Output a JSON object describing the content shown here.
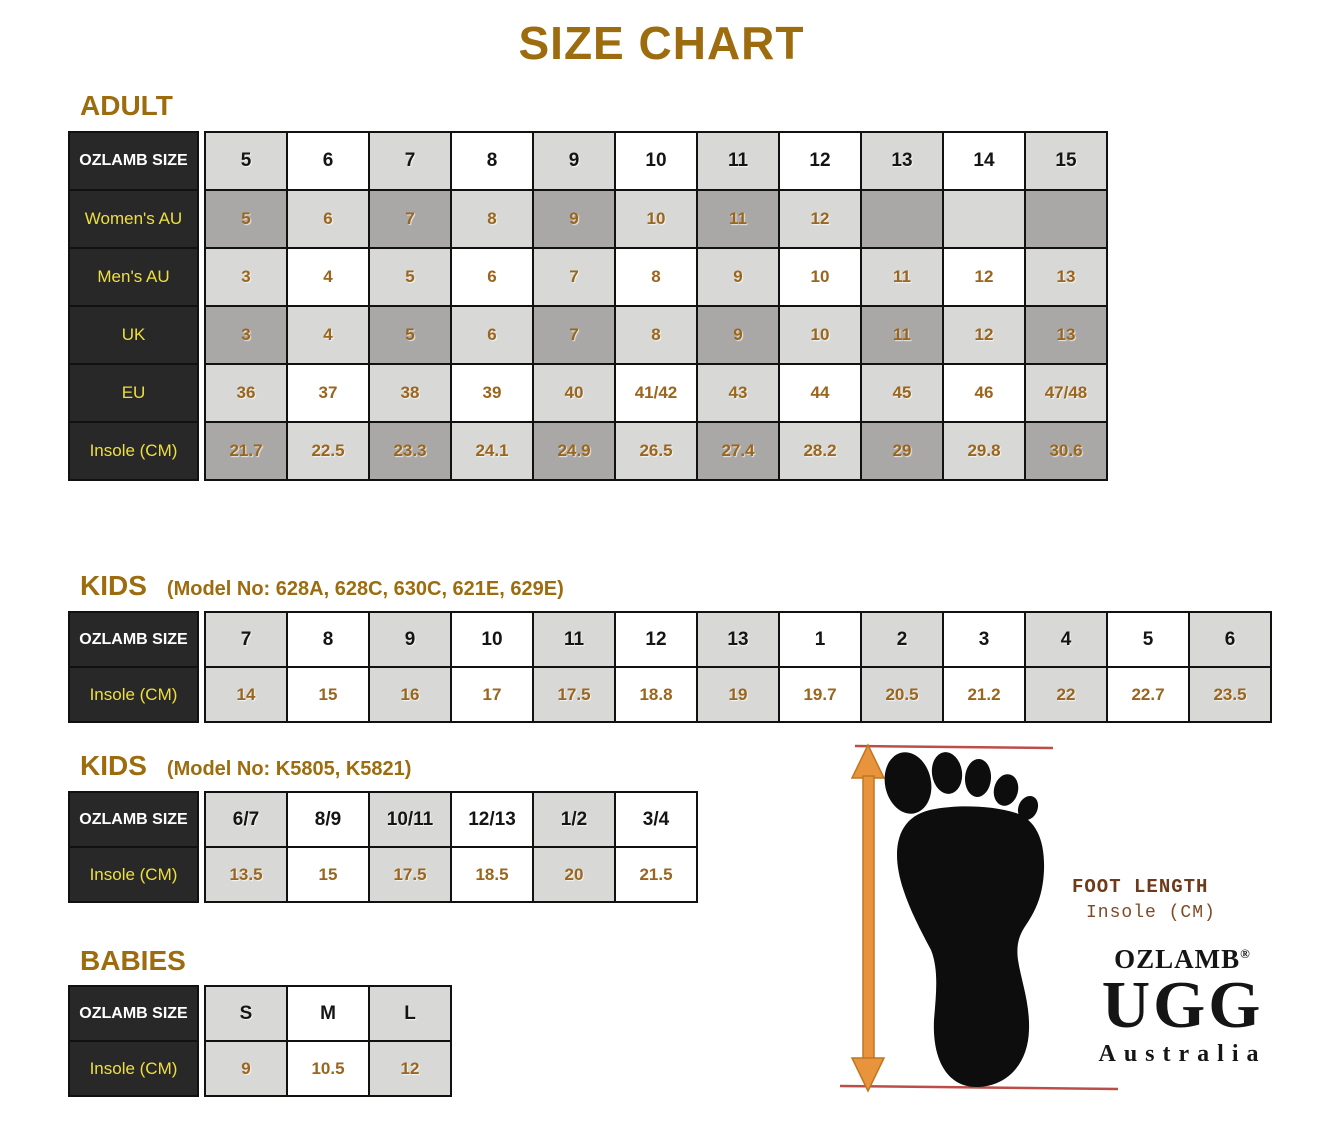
{
  "title": "SIZE CHART",
  "colors": {
    "accent_brown": "#9c6c0e",
    "value_brown": "#9a651d",
    "label_bg": "#282828",
    "label_yellow": "#efdf3e",
    "cell_white": "#ffffff",
    "cell_light_gray": "#d8d8d6",
    "cell_dark_gray": "#a9a8a6",
    "arrow_orange": "#e8943c",
    "ruler_red": "#bc4e49",
    "foot_black": "#0d0d0d"
  },
  "sections": {
    "adult": {
      "heading": "ADULT",
      "rows": [
        {
          "label": "OZLAMB SIZE",
          "label_ink": "white",
          "pattern": "A",
          "ink": "black",
          "values": [
            "5",
            "6",
            "7",
            "8",
            "9",
            "10",
            "11",
            "12",
            "13",
            "14",
            "15"
          ]
        },
        {
          "label": "Women's AU",
          "label_ink": "yellow",
          "pattern": "B",
          "ink": "brown",
          "values": [
            "5",
            "6",
            "7",
            "8",
            "9",
            "10",
            "11",
            "12",
            "",
            "",
            ""
          ]
        },
        {
          "label": "Men's AU",
          "label_ink": "yellow",
          "pattern": "A",
          "ink": "brown",
          "values": [
            "3",
            "4",
            "5",
            "6",
            "7",
            "8",
            "9",
            "10",
            "11",
            "12",
            "13"
          ]
        },
        {
          "label": "UK",
          "label_ink": "yellow",
          "pattern": "B",
          "ink": "brown",
          "values": [
            "3",
            "4",
            "5",
            "6",
            "7",
            "8",
            "9",
            "10",
            "11",
            "12",
            "13"
          ]
        },
        {
          "label": "EU",
          "label_ink": "yellow",
          "pattern": "A",
          "ink": "brown",
          "values": [
            "36",
            "37",
            "38",
            "39",
            "40",
            "41/42",
            "43",
            "44",
            "45",
            "46",
            "47/48"
          ]
        },
        {
          "label": "Insole (CM)",
          "label_ink": "yellow",
          "pattern": "B",
          "ink": "brown",
          "values": [
            "21.7",
            "22.5",
            "23.3",
            "24.1",
            "24.9",
            "26.5",
            "27.4",
            "28.2",
            "29",
            "29.8",
            "30.6"
          ]
        }
      ]
    },
    "kids_a": {
      "heading": "KIDS",
      "model": "(Model No: 628A, 628C, 630C, 621E, 629E)",
      "rows": [
        {
          "label": "OZLAMB SIZE",
          "label_ink": "white",
          "pattern": "A",
          "ink": "black",
          "values": [
            "7",
            "8",
            "9",
            "10",
            "11",
            "12",
            "13",
            "1",
            "2",
            "3",
            "4",
            "5",
            "6"
          ]
        },
        {
          "label": "Insole (CM)",
          "label_ink": "yellow",
          "pattern": "A",
          "ink": "brown",
          "values": [
            "14",
            "15",
            "16",
            "17",
            "17.5",
            "18.8",
            "19",
            "19.7",
            "20.5",
            "21.2",
            "22",
            "22.7",
            "23.5"
          ]
        }
      ]
    },
    "kids_b": {
      "heading": "KIDS",
      "model": "(Model No: K5805, K5821)",
      "rows": [
        {
          "label": "OZLAMB SIZE",
          "label_ink": "white",
          "pattern": "A",
          "ink": "black",
          "values": [
            "6/7",
            "8/9",
            "10/11",
            "12/13",
            "1/2",
            "3/4"
          ]
        },
        {
          "label": "Insole (CM)",
          "label_ink": "yellow",
          "pattern": "A",
          "ink": "brown",
          "values": [
            "13.5",
            "15",
            "17.5",
            "18.5",
            "20",
            "21.5"
          ]
        }
      ]
    },
    "babies": {
      "heading": "BABIES",
      "rows": [
        {
          "label": "OZLAMB SIZE",
          "label_ink": "white",
          "pattern": "A",
          "ink": "black",
          "values": [
            "S",
            "M",
            "L"
          ]
        },
        {
          "label": "Insole (CM)",
          "label_ink": "yellow",
          "pattern": "A",
          "ink": "brown",
          "values": [
            "9",
            "10.5",
            "12"
          ]
        }
      ]
    }
  },
  "foot_diagram": {
    "length_label": "FOOT LENGTH",
    "unit_label": "Insole (CM)",
    "brand_name": "OZLAMB",
    "registered_mark": "®",
    "brand_main": "UGG",
    "brand_country": "Australia",
    "icons": {
      "footprint-icon": "black footprint silhouette",
      "measure-arrow-icon": "orange vertical double-headed arrow",
      "ruler-line-icon": "red horizontal measurement lines"
    }
  }
}
